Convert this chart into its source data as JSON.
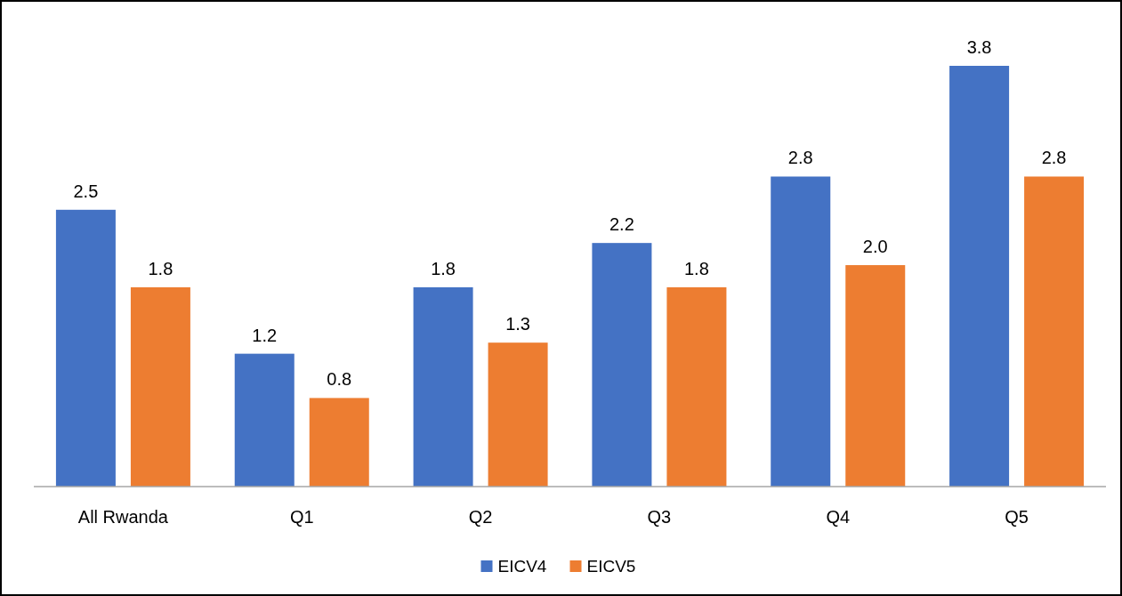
{
  "chart_data": {
    "type": "bar",
    "categories": [
      "All Rwanda",
      "Q1",
      "Q2",
      "Q3",
      "Q4",
      "Q5"
    ],
    "series": [
      {
        "name": "EICV4",
        "color": "#4472c4",
        "values": [
          2.5,
          1.2,
          1.8,
          2.2,
          2.8,
          3.8
        ],
        "value_labels": [
          "2.5",
          "1.2",
          "1.8",
          "2.2",
          "2.8",
          "3.8"
        ]
      },
      {
        "name": "EICV5",
        "color": "#ed7d31",
        "values": [
          1.8,
          0.8,
          1.3,
          1.8,
          2.0,
          2.8
        ],
        "value_labels": [
          "1.8",
          "0.8",
          "1.3",
          "1.8",
          "2.0",
          "2.8"
        ]
      }
    ],
    "legend": "bottom"
  }
}
